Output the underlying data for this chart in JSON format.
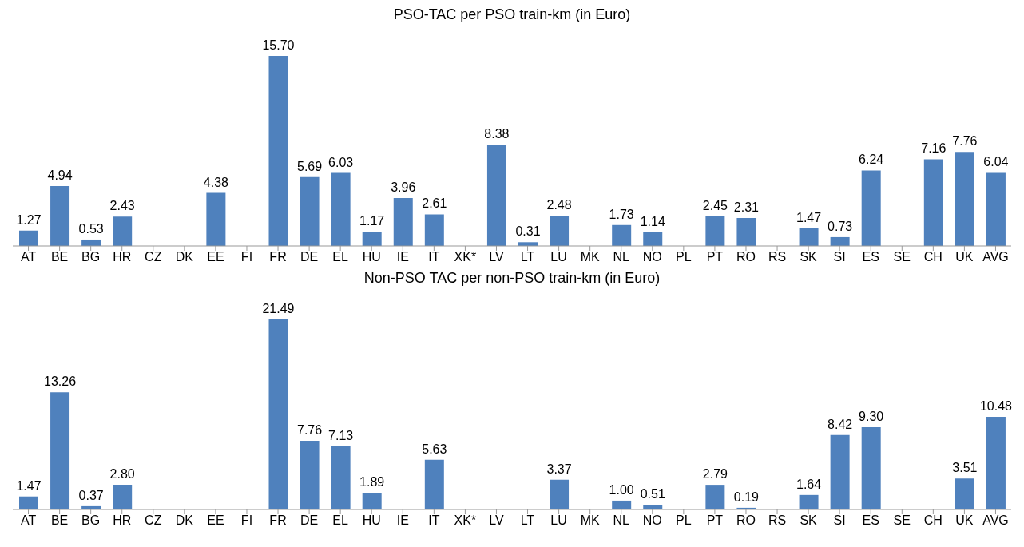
{
  "chart_data": [
    {
      "type": "bar",
      "title": "PSO-TAC per PSO train-km (in Euro)",
      "categories": [
        "AT",
        "BE",
        "BG",
        "HR",
        "CZ",
        "DK",
        "EE",
        "FI",
        "FR",
        "DE",
        "EL",
        "HU",
        "IE",
        "IT",
        "XK*",
        "LV",
        "LT",
        "LU",
        "MK",
        "NL",
        "NO",
        "PL",
        "PT",
        "RO",
        "RS",
        "SK",
        "SI",
        "ES",
        "SE",
        "CH",
        "UK",
        "AVG"
      ],
      "values": [
        1.27,
        4.94,
        0.53,
        2.43,
        null,
        null,
        4.38,
        null,
        15.7,
        5.69,
        6.03,
        1.17,
        3.96,
        2.61,
        null,
        8.38,
        0.31,
        2.48,
        null,
        1.73,
        1.14,
        null,
        2.45,
        2.31,
        null,
        1.47,
        0.73,
        6.24,
        null,
        7.16,
        7.76,
        6.04
      ],
      "value_labels": [
        "1.27",
        "4.94",
        "0.53",
        "2.43",
        null,
        null,
        "4.38",
        null,
        "15.70",
        "5.69",
        "6.03",
        "1.17",
        "3.96",
        "2.61",
        null,
        "8.38",
        "0.31",
        "2.48",
        null,
        "1.73",
        "1.14",
        null,
        "2.45",
        "2.31",
        null,
        "1.47",
        "0.73",
        "6.24",
        null,
        "7.16",
        "7.76",
        "6.04"
      ],
      "color": "#4f81bd",
      "grid": false,
      "legend": false
    },
    {
      "type": "bar",
      "title": "Non-PSO TAC per non-PSO train-km (in Euro)",
      "categories": [
        "AT",
        "BE",
        "BG",
        "HR",
        "CZ",
        "DK",
        "EE",
        "FI",
        "FR",
        "DE",
        "EL",
        "HU",
        "IE",
        "IT",
        "XK*",
        "LV",
        "LT",
        "LU",
        "MK",
        "NL",
        "NO",
        "PL",
        "PT",
        "RO",
        "RS",
        "SK",
        "SI",
        "ES",
        "SE",
        "CH",
        "UK",
        "AVG"
      ],
      "values": [
        1.47,
        13.26,
        0.37,
        2.8,
        null,
        null,
        null,
        null,
        21.49,
        7.76,
        7.13,
        1.89,
        null,
        5.63,
        null,
        null,
        null,
        3.37,
        null,
        1.0,
        0.51,
        null,
        2.79,
        0.19,
        null,
        1.64,
        8.42,
        9.3,
        null,
        null,
        3.51,
        10.48
      ],
      "value_labels": [
        "1.47",
        "13.26",
        "0.37",
        "2.80",
        null,
        null,
        null,
        null,
        "21.49",
        "7.76",
        "7.13",
        "1.89",
        null,
        "5.63",
        null,
        null,
        null,
        "3.37",
        null,
        "1.00",
        "0.51",
        null,
        "2.79",
        "0.19",
        null,
        "1.64",
        "8.42",
        "9.30",
        null,
        null,
        "3.51",
        "10.48"
      ],
      "color": "#4f81bd",
      "grid": false,
      "legend": false
    }
  ]
}
